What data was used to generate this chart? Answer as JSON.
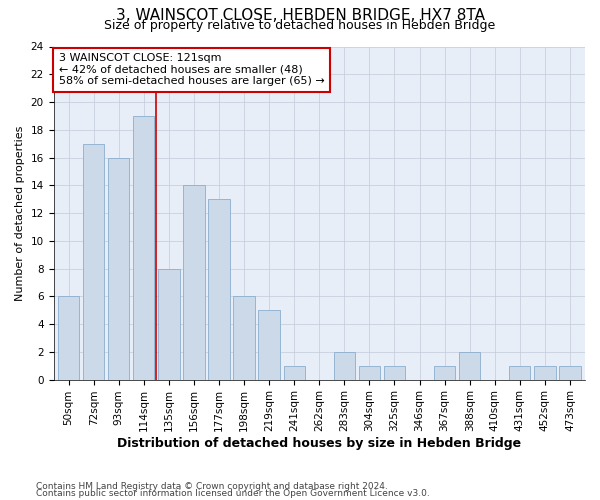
{
  "title": "3, WAINSCOT CLOSE, HEBDEN BRIDGE, HX7 8TA",
  "subtitle": "Size of property relative to detached houses in Hebden Bridge",
  "xlabel": "Distribution of detached houses by size in Hebden Bridge",
  "ylabel": "Number of detached properties",
  "categories": [
    "50sqm",
    "72sqm",
    "93sqm",
    "114sqm",
    "135sqm",
    "156sqm",
    "177sqm",
    "198sqm",
    "219sqm",
    "241sqm",
    "262sqm",
    "283sqm",
    "304sqm",
    "325sqm",
    "346sqm",
    "367sqm",
    "388sqm",
    "410sqm",
    "431sqm",
    "452sqm",
    "473sqm"
  ],
  "values": [
    6,
    17,
    16,
    19,
    8,
    14,
    13,
    6,
    5,
    1,
    0,
    2,
    1,
    1,
    0,
    1,
    2,
    0,
    1,
    1,
    1
  ],
  "bar_color": "#ccd9e8",
  "bar_edge_color": "#8aaece",
  "annotation_text": "3 WAINSCOT CLOSE: 121sqm\n← 42% of detached houses are smaller (48)\n58% of semi-detached houses are larger (65) →",
  "annotation_box_color": "white",
  "annotation_box_edge_color": "#cc0000",
  "vline_x": 3.5,
  "vline_color": "#cc0000",
  "ylim": [
    0,
    24
  ],
  "yticks": [
    0,
    2,
    4,
    6,
    8,
    10,
    12,
    14,
    16,
    18,
    20,
    22,
    24
  ],
  "grid_color": "#c8d0de",
  "background_color": "#e8eef8",
  "footer_line1": "Contains HM Land Registry data © Crown copyright and database right 2024.",
  "footer_line2": "Contains public sector information licensed under the Open Government Licence v3.0.",
  "title_fontsize": 11,
  "subtitle_fontsize": 9,
  "xlabel_fontsize": 9,
  "ylabel_fontsize": 8,
  "tick_fontsize": 7.5,
  "annot_fontsize": 8,
  "footer_fontsize": 6.5
}
